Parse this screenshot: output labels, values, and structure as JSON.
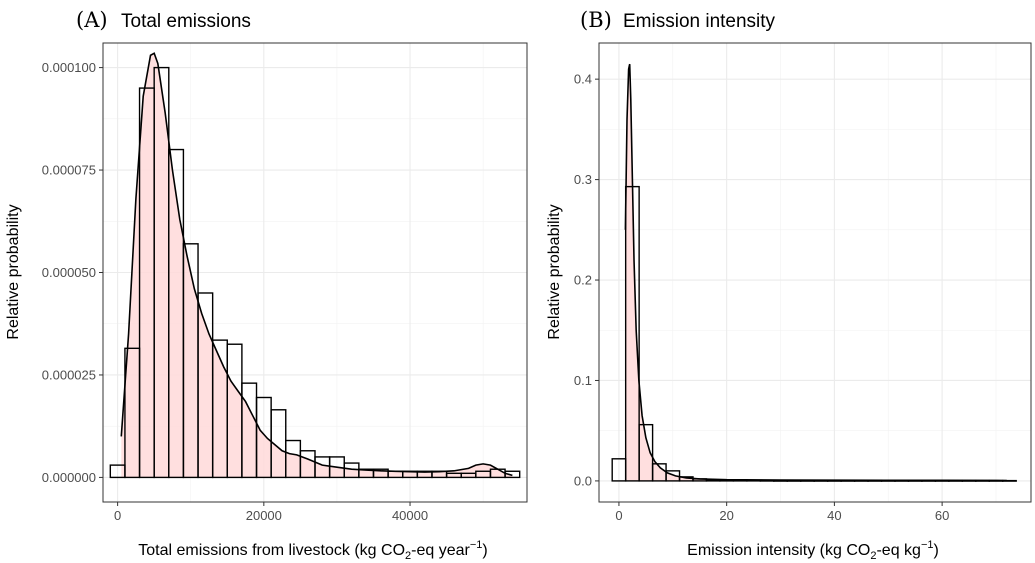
{
  "chart_data": [
    {
      "type": "histogram",
      "panel_label": "(A)",
      "title": "Total emissions",
      "xlabel_main": "Total emissions from livestock (kg CO",
      "xlabel_sub": "2",
      "xlabel_mid": "-eq year",
      "xlabel_sup": "−1",
      "xlabel_end": ")",
      "ylabel": "Relative probability",
      "xlim": [
        -2000,
        56000
      ],
      "ylim": [
        -6e-06,
        0.000106
      ],
      "xticks": [
        0,
        20000,
        40000
      ],
      "xtick_labels": [
        "0",
        "20000",
        "40000"
      ],
      "yticks": [
        0.0,
        2.5e-05,
        5e-05,
        7.5e-05,
        0.0001
      ],
      "ytick_labels": [
        "0.000000",
        "0.000025",
        "0.000050",
        "0.000075",
        "0.000100"
      ],
      "bins": {
        "start": -1000,
        "width": 2000,
        "values": [
          3e-06,
          3.15e-05,
          9.5e-05,
          0.0001,
          8e-05,
          5.7e-05,
          4.5e-05,
          3.35e-05,
          3.25e-05,
          2.3e-05,
          1.95e-05,
          1.65e-05,
          9e-06,
          6.5e-06,
          5e-06,
          5e-06,
          3.5e-06,
          2e-06,
          2e-06,
          1.5e-06,
          1.5e-06,
          1.5e-06,
          1.5e-06,
          1e-06,
          1e-06,
          1.5e-06,
          2e-06,
          1.5e-06
        ]
      },
      "density": {
        "x": [
          500,
          1500,
          2500,
          3500,
          4500,
          5000,
          5500,
          6500,
          7500,
          8500,
          9500,
          10500,
          11500,
          12500,
          13500,
          14500,
          15500,
          16500,
          17500,
          18500,
          19500,
          20500,
          21500,
          22500,
          23500,
          24500,
          26000,
          28000,
          30000,
          32000,
          34000,
          36000,
          38000,
          40000,
          42000,
          44000,
          46000,
          48000,
          49000,
          50000,
          51000,
          52000,
          53000,
          54000
        ],
        "y": [
          1e-05,
          3.5e-05,
          6.8e-05,
          9.3e-05,
          0.000103,
          0.0001035,
          0.000101,
          8.9e-05,
          7.5e-05,
          6.3e-05,
          5.4e-05,
          4.6e-05,
          4e-05,
          3.5e-05,
          3.1e-05,
          2.7e-05,
          2.35e-05,
          2.1e-05,
          1.85e-05,
          1.5e-05,
          1.15e-05,
          9.5e-06,
          8e-06,
          6.5e-06,
          5.8e-06,
          5.5e-06,
          4.5e-06,
          3e-06,
          2.5e-06,
          2e-06,
          1.8e-06,
          1.6e-06,
          1.5e-06,
          1.4e-06,
          1.3e-06,
          1.4e-06,
          1.6e-06,
          2.2e-06,
          3e-06,
          3.3e-06,
          3e-06,
          2e-06,
          1e-06,
          5e-07
        ]
      }
    },
    {
      "type": "histogram",
      "panel_label": "(B)",
      "title": "Emission intensity",
      "xlabel_main": "Emission intensity (kg CO",
      "xlabel_sub": "2",
      "xlabel_mid": "-eq kg",
      "xlabel_sup": "−1",
      "xlabel_end": ")",
      "ylabel": "Relative probability",
      "xlim": [
        -3.7,
        76.5
      ],
      "ylim": [
        -0.021,
        0.436
      ],
      "xticks": [
        0,
        20,
        40,
        60
      ],
      "xtick_labels": [
        "0",
        "20",
        "40",
        "60"
      ],
      "yticks": [
        0.0,
        0.1,
        0.2,
        0.3,
        0.4
      ],
      "ytick_labels": [
        "0.0",
        "0.1",
        "0.2",
        "0.3",
        "0.4"
      ],
      "bins": {
        "start": -1.25,
        "width": 2.5,
        "values": [
          0.022,
          0.293,
          0.056,
          0.017,
          0.01,
          0.004,
          0.002,
          0.001,
          0.0008,
          0.0006,
          0.0005,
          0.0004,
          0.0003,
          0.0003,
          0.0003,
          0.0003,
          0.0003,
          0.0003,
          0.0003,
          0.0003,
          0.0003,
          0.0003,
          0.0003,
          0.0003,
          0.0003,
          0.0003,
          0.0003,
          0.0003,
          0.0003,
          0.0003
        ]
      },
      "density": {
        "x": [
          1.2,
          1.5,
          1.8,
          2.0,
          2.2,
          2.5,
          2.8,
          3.2,
          3.7,
          4.3,
          5.0,
          5.8,
          6.7,
          7.7,
          9.0,
          10.5,
          12.5,
          15.0,
          20.0,
          30.0,
          40.0,
          50.0,
          60.0,
          70.0,
          72.0
        ],
        "y": [
          0.25,
          0.36,
          0.41,
          0.415,
          0.38,
          0.3,
          0.22,
          0.15,
          0.1,
          0.065,
          0.043,
          0.028,
          0.019,
          0.013,
          0.008,
          0.005,
          0.003,
          0.002,
          0.0012,
          0.0008,
          0.0007,
          0.0006,
          0.0006,
          0.0005,
          0.0004
        ]
      }
    }
  ]
}
